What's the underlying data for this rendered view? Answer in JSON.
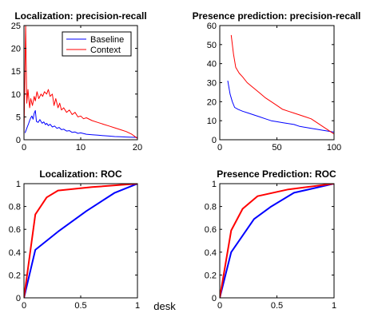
{
  "figure_caption": "desk",
  "chart_data": [
    {
      "id": "loc-pr",
      "type": "line",
      "title": "Localization: precision-recall",
      "xlabel": "",
      "ylabel": "",
      "xlim": [
        0,
        20
      ],
      "ylim": [
        0,
        25
      ],
      "xticks": [
        0,
        10,
        20
      ],
      "yticks": [
        0,
        5,
        10,
        15,
        20,
        25
      ],
      "legend": {
        "placement": "top-right"
      },
      "series": [
        {
          "name": "Baseline",
          "color": "#0000ff",
          "width": 1,
          "x": [
            0.2,
            0.5,
            0.8,
            1.0,
            1.2,
            1.4,
            1.6,
            1.8,
            2.0,
            2.2,
            2.5,
            2.8,
            3.0,
            3.2,
            3.5,
            3.8,
            4.0,
            4.3,
            4.6,
            5.0,
            5.4,
            5.8,
            6.2,
            6.6,
            7.0,
            7.5,
            8.0,
            8.5,
            9.0,
            9.5,
            10.0,
            11.0,
            12.0,
            13.0,
            14.0,
            15.0,
            16.0,
            17.0,
            18.0,
            19.0,
            20.0
          ],
          "y": [
            1.5,
            2.5,
            3.5,
            4.2,
            4.8,
            5.2,
            4.5,
            5.8,
            6.4,
            4.0,
            3.8,
            4.4,
            4.0,
            3.6,
            3.9,
            3.3,
            3.6,
            3.1,
            3.4,
            2.8,
            3.0,
            2.5,
            2.7,
            2.2,
            2.3,
            1.9,
            2.0,
            1.6,
            1.7,
            1.4,
            1.5,
            1.2,
            1.1,
            1.0,
            0.9,
            0.8,
            0.7,
            0.65,
            0.6,
            0.55,
            0.5
          ]
        },
        {
          "name": "Context",
          "color": "#ff0000",
          "width": 1,
          "x": [
            0.0,
            0.3,
            0.5,
            0.7,
            1.0,
            1.2,
            1.5,
            1.8,
            2.0,
            2.3,
            2.6,
            3.0,
            3.3,
            3.6,
            4.0,
            4.3,
            4.6,
            5.0,
            5.3,
            5.6,
            6.0,
            6.3,
            6.6,
            7.0,
            7.5,
            8.0,
            8.5,
            9.0,
            9.5,
            10.0,
            10.5,
            11.0,
            12.0,
            13.0,
            14.0,
            15.0,
            16.0,
            17.0,
            18.0,
            19.0,
            20.0
          ],
          "y": [
            1.0,
            25.0,
            8.0,
            11.0,
            7.0,
            9.0,
            7.5,
            9.5,
            8.5,
            10.5,
            9.0,
            10.0,
            9.5,
            10.5,
            10.0,
            11.0,
            9.5,
            10.0,
            7.5,
            9.0,
            7.0,
            8.0,
            6.5,
            7.0,
            6.0,
            6.5,
            5.5,
            6.0,
            5.0,
            5.2,
            4.6,
            4.8,
            4.2,
            3.8,
            3.4,
            3.0,
            2.6,
            2.2,
            1.8,
            1.2,
            0.3
          ]
        }
      ]
    },
    {
      "id": "pres-pr",
      "type": "line",
      "title": "Presence prediction: precision-recall",
      "xlabel": "",
      "ylabel": "",
      "xlim": [
        0,
        100
      ],
      "ylim": [
        0,
        60
      ],
      "xticks": [
        0,
        50,
        100
      ],
      "yticks": [
        0,
        10,
        20,
        30,
        40,
        50,
        60
      ],
      "series": [
        {
          "name": "Baseline",
          "color": "#0000ff",
          "width": 1,
          "x": [
            7,
            9,
            11,
            13,
            16,
            20,
            25,
            30,
            35,
            40,
            45,
            50,
            55,
            60,
            65,
            70,
            75,
            80,
            85,
            90,
            95,
            100
          ],
          "y": [
            31,
            24,
            20,
            17,
            16,
            15,
            14,
            13,
            12,
            11,
            10,
            9.5,
            9,
            8.5,
            8,
            7,
            6.5,
            6,
            5.5,
            5,
            4.5,
            4
          ]
        },
        {
          "name": "Context",
          "color": "#ff0000",
          "width": 1,
          "x": [
            10,
            12,
            14,
            17,
            20,
            24,
            28,
            32,
            36,
            40,
            45,
            50,
            55,
            60,
            65,
            70,
            75,
            80,
            85,
            90,
            95,
            100
          ],
          "y": [
            55,
            45,
            38,
            35,
            33,
            30,
            28,
            26,
            24,
            22,
            20,
            18,
            16,
            15,
            14,
            13,
            12,
            11,
            9,
            7,
            5,
            3
          ]
        }
      ]
    },
    {
      "id": "loc-roc",
      "type": "line",
      "title": "Localization: ROC",
      "xlabel": "",
      "ylabel": "",
      "xlim": [
        0,
        1
      ],
      "ylim": [
        0,
        1
      ],
      "xticks": [
        0,
        0.5,
        1
      ],
      "yticks": [
        0,
        0.2,
        0.4,
        0.6,
        0.8,
        1
      ],
      "series": [
        {
          "name": "Baseline",
          "color": "#0000ff",
          "width": 2,
          "x": [
            0,
            0.1,
            0.3,
            0.55,
            0.8,
            1.0
          ],
          "y": [
            0,
            0.42,
            0.58,
            0.76,
            0.92,
            1.0
          ]
        },
        {
          "name": "Context",
          "color": "#ff0000",
          "width": 2,
          "x": [
            0,
            0.1,
            0.2,
            0.3,
            0.6,
            1.0
          ],
          "y": [
            0,
            0.73,
            0.88,
            0.94,
            0.97,
            1.0
          ]
        }
      ]
    },
    {
      "id": "pres-roc",
      "type": "line",
      "title": "Presence Prediction: ROC",
      "xlabel": "",
      "ylabel": "",
      "xlim": [
        0,
        1
      ],
      "ylim": [
        0,
        1
      ],
      "xticks": [
        0,
        0.5,
        1
      ],
      "yticks": [
        0,
        0.2,
        0.4,
        0.6,
        0.8,
        1
      ],
      "series": [
        {
          "name": "Baseline",
          "color": "#0000ff",
          "width": 2,
          "x": [
            0,
            0.1,
            0.3,
            0.45,
            0.65,
            1.0
          ],
          "y": [
            0,
            0.4,
            0.69,
            0.8,
            0.92,
            1.0
          ]
        },
        {
          "name": "Context",
          "color": "#ff0000",
          "width": 2,
          "x": [
            0,
            0.1,
            0.2,
            0.33,
            0.6,
            1.0
          ],
          "y": [
            0,
            0.59,
            0.78,
            0.89,
            0.95,
            1.0
          ]
        }
      ]
    }
  ]
}
